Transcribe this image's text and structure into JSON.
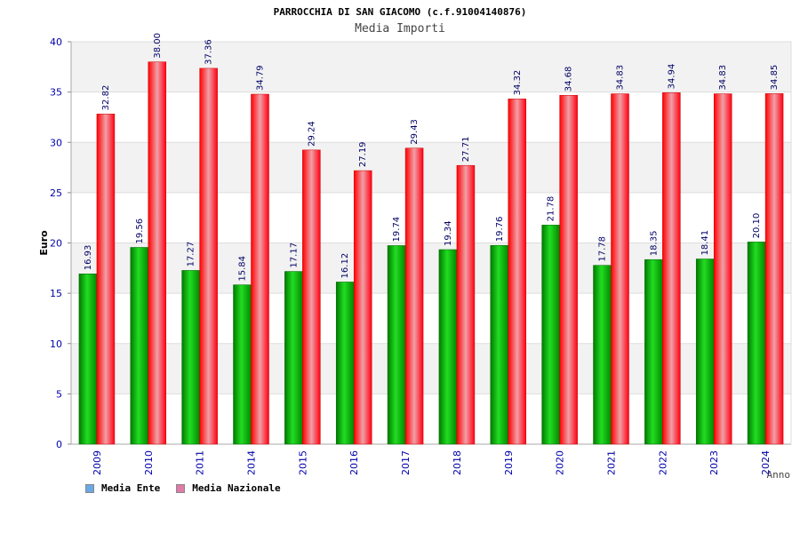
{
  "chart_data": {
    "type": "bar",
    "title": "PARROCCHIA DI SAN GIACOMO (c.f.91004140876)",
    "subtitle": "Media Importi",
    "ylabel": "Euro",
    "xlabel": "Anno",
    "ylim": [
      0,
      40
    ],
    "yticks": [
      0,
      5,
      10,
      15,
      20,
      25,
      30,
      35,
      40
    ],
    "grid": true,
    "legend_position": "bottom-left",
    "categories": [
      "2009",
      "2010",
      "2011",
      "2014",
      "2015",
      "2016",
      "2017",
      "2018",
      "2019",
      "2020",
      "2021",
      "2022",
      "2023",
      "2024"
    ],
    "series": [
      {
        "name": "Media Ente",
        "color": "#00aa00",
        "legend_color": "#6aa8e8",
        "values": [
          16.93,
          19.56,
          17.27,
          15.84,
          17.17,
          16.12,
          19.74,
          19.34,
          19.76,
          21.78,
          17.78,
          18.35,
          18.41,
          20.1
        ]
      },
      {
        "name": "Media Nazionale",
        "color": "#ee1122",
        "legend_color": "#e07aa8",
        "values": [
          32.82,
          38.0,
          37.36,
          34.79,
          29.24,
          27.19,
          29.43,
          27.71,
          34.32,
          34.68,
          34.83,
          34.94,
          34.83,
          34.85
        ]
      }
    ]
  }
}
